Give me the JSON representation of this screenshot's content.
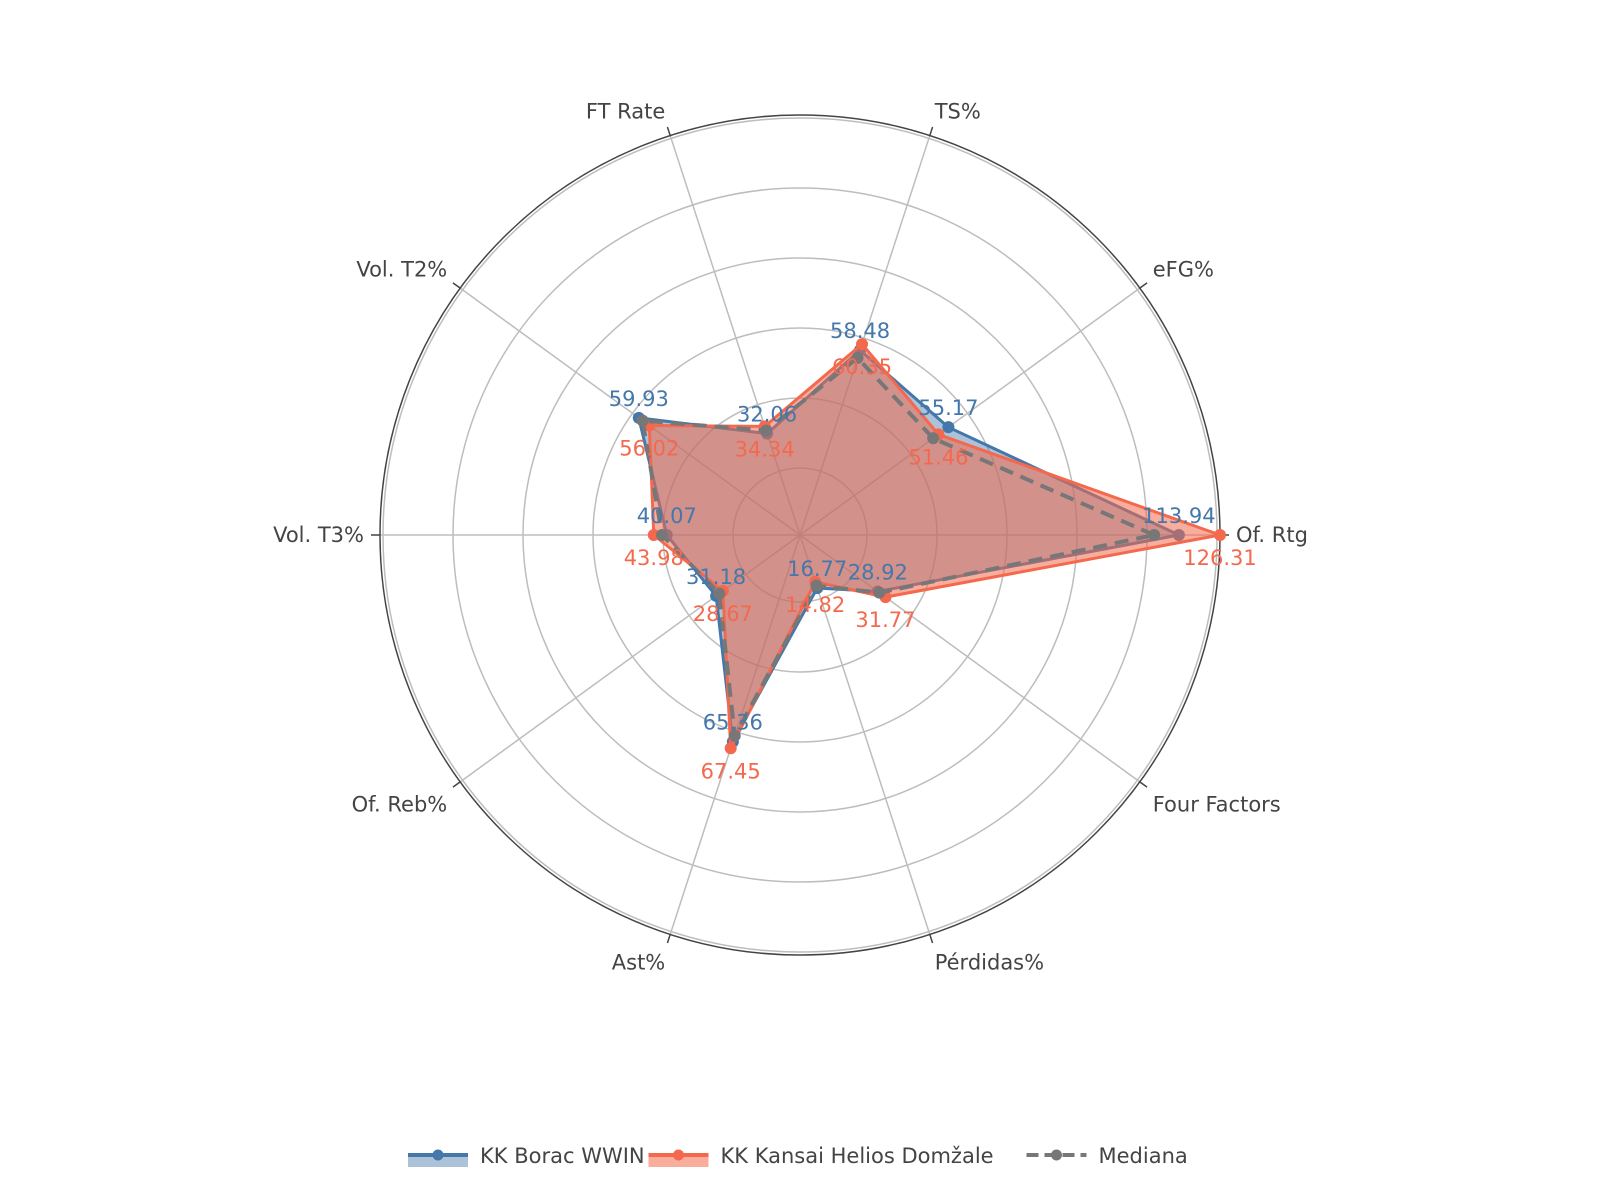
{
  "chart_data": {
    "type": "radar",
    "title": "",
    "axes": [
      "Of. Rtg",
      "eFG%",
      "TS%",
      "FT Rate",
      "Vol. T2%",
      "Vol. T3%",
      "Of. Reb%",
      "Ast%",
      "Pérdidas%",
      "Four Factors"
    ],
    "radial_range": [
      0,
      126.31
    ],
    "grid": true,
    "legend_position": "bottom",
    "series": [
      {
        "name": "KK Borac WWIN",
        "color": "#4477aa",
        "line": "solid",
        "values": [
          113.94,
          55.17,
          58.48,
          32.06,
          59.93,
          40.07,
          31.18,
          65.36,
          16.77,
          28.92
        ],
        "labels": [
          "113.94",
          "55.17",
          "58.48",
          "32.06",
          "59.93",
          "40.07",
          "31.18",
          "65.36",
          "16.77",
          "28.92"
        ],
        "label_positions": [
          "above",
          "above",
          "above",
          "above",
          "above",
          "above",
          "above",
          "above",
          "above",
          "above"
        ]
      },
      {
        "name": "KK Kansai Helios Domžale",
        "color": "#f4694d",
        "line": "solid",
        "values": [
          126.31,
          51.46,
          60.35,
          34.34,
          56.02,
          43.98,
          28.67,
          67.45,
          14.82,
          31.77
        ],
        "labels": [
          "126.31",
          "51.46",
          "60.35",
          "34.34",
          "56.02",
          "43.98",
          "28.67",
          "67.45",
          "14.82",
          "31.77"
        ],
        "label_positions": [
          "below",
          "below",
          "below",
          "below",
          "below",
          "below",
          "below",
          "below",
          "below",
          "below"
        ]
      },
      {
        "name": "Mediana",
        "color": "#777777",
        "line": "dashed",
        "values": [
          106.5,
          49.5,
          56.0,
          33.0,
          58.5,
          41.5,
          30.0,
          63.5,
          16.0,
          29.5
        ]
      }
    ]
  }
}
